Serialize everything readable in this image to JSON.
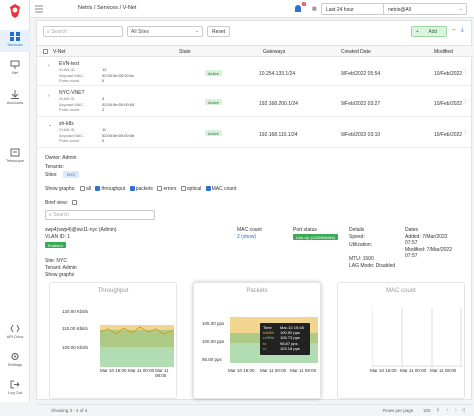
{
  "sidebar": {
    "items": [
      {
        "label": "Services"
      },
      {
        "label": "Net"
      },
      {
        "label": "Accounts"
      },
      {
        "label": "Telescope"
      }
    ],
    "bottom": [
      {
        "label": "API Docs"
      },
      {
        "label": "Settings"
      },
      {
        "label": "Log Out"
      }
    ]
  },
  "topbar": {
    "breadcrumb": "Netris / Services / V-Net",
    "notif_count": "4",
    "time_range": "Last 24 hour",
    "user": "netris@All"
  },
  "filters": {
    "search_placeholder": "Search",
    "site": "All Sites",
    "reset": "Reset",
    "add": "Add"
  },
  "table": {
    "columns": [
      "V-Net",
      "State",
      "Gateways",
      "Created Date",
      "Modified"
    ],
    "rows": [
      {
        "name": "EVN-test",
        "vlan_label": "VLAN ID",
        "vlan": "12",
        "mac_label": "Anycast MAC",
        "mac": "02:00:5e:00:00:0c",
        "ports_label": "Ports count",
        "ports": "0",
        "state": "Active",
        "gateway": "10.254.133.1/24",
        "created": "9/Feb/2022 05:54",
        "modified": "10/Feb/2022"
      },
      {
        "name": "NYC-VNET",
        "vlan_label": "VLAN ID",
        "vlan": "4",
        "mac_label": "Anycast MAC",
        "mac": "02:00:5e:00:00:04",
        "ports_label": "Ports count",
        "ports": "2",
        "state": "Active",
        "gateway": "192.168.200.1/24",
        "created": "9/Feb/2022 03:27",
        "modified": "10/Feb/2022"
      },
      {
        "name": "sh-k8s",
        "vlan_label": "VLAN ID",
        "vlan": "11",
        "mac_label": "Anycast MAC",
        "mac": "02:00:5e:00:00:0b",
        "ports_label": "Ports count",
        "ports": "0",
        "state": "Active",
        "gateway": "192.168.110.1/24",
        "created": "9/Feb/2022 03:10",
        "modified": "10/Feb/2022"
      }
    ]
  },
  "detail": {
    "owner": "Owner:  Admin",
    "tenants": "Tenants:",
    "sites_label": "Sites:",
    "site": "NYC",
    "show_graphs": "Show graphs:",
    "graph_opts": [
      "all",
      "throughput",
      "packets",
      "errors",
      "optical",
      "MAC count"
    ],
    "brief_view": "Brief view:",
    "search_placeholder": "Search",
    "port": {
      "name": "swp4(swp4)@sw11-nyc (Admin)",
      "vlan": "VLAN ID: 1",
      "state": "Enabled",
      "site": "Site: NYC",
      "tenant": "Tenant: Admin",
      "show_graphs": "Show graphs",
      "mac_title": "MAC count",
      "mac_value": "2 (show)",
      "port_status_title": "Port status",
      "port_status": "Link Up (10000Mbit/s)",
      "details_title": "Details",
      "speed": "Speed:",
      "utilization": "Utilization:",
      "mtu": "MTU: 1500",
      "lag": "LAG Mode: Disabled",
      "dates_title": "Dates",
      "added": "Added: 7/Mar/2022",
      "added_time": "07:57",
      "modified": "Modified: 7/Mar/2022",
      "modified_time": "07:57"
    }
  },
  "charts": {
    "throughput": {
      "title": "Throughput",
      "yticks": [
        "120.00 Kbit/s",
        "110.00 Kbit/s",
        "100.00 Kbit/s"
      ],
      "xticks": [
        "Mar 10 16:00",
        "Mar 11 00:00",
        "Mar 11 08:00"
      ]
    },
    "packets": {
      "title": "Packets",
      "yticks": [
        "105.00 pps",
        "100.00 pps",
        "95.00 pps"
      ],
      "xticks": [
        "Mar 10 16:00",
        "Mar 11 00:00",
        "Mar 11 08:00"
      ],
      "tooltip": {
        "time_label": "Time",
        "time": "Mar-10 15:48",
        "rows": [
          {
            "label": "tx95th",
            "value": "100.92 pps"
          },
          {
            "label": "rx95th",
            "value": "105.73 pps"
          },
          {
            "label": "tx",
            "value": "98.87 pps"
          },
          {
            "label": "rx",
            "value": "103.18 pps"
          }
        ]
      }
    },
    "mac": {
      "title": "MAC count",
      "xticks": [
        "Mar 10 16:00",
        "Mar 11 00:00",
        "Mar 11 08:00"
      ]
    }
  },
  "footer": {
    "showing": "Showing 3 - 4 of 4",
    "rows_per_page": "Rows per page",
    "per_page": "100"
  },
  "colors": {
    "accent": "#1f6fd1",
    "green": "#2e9e46",
    "yellow": "#e8b335"
  }
}
